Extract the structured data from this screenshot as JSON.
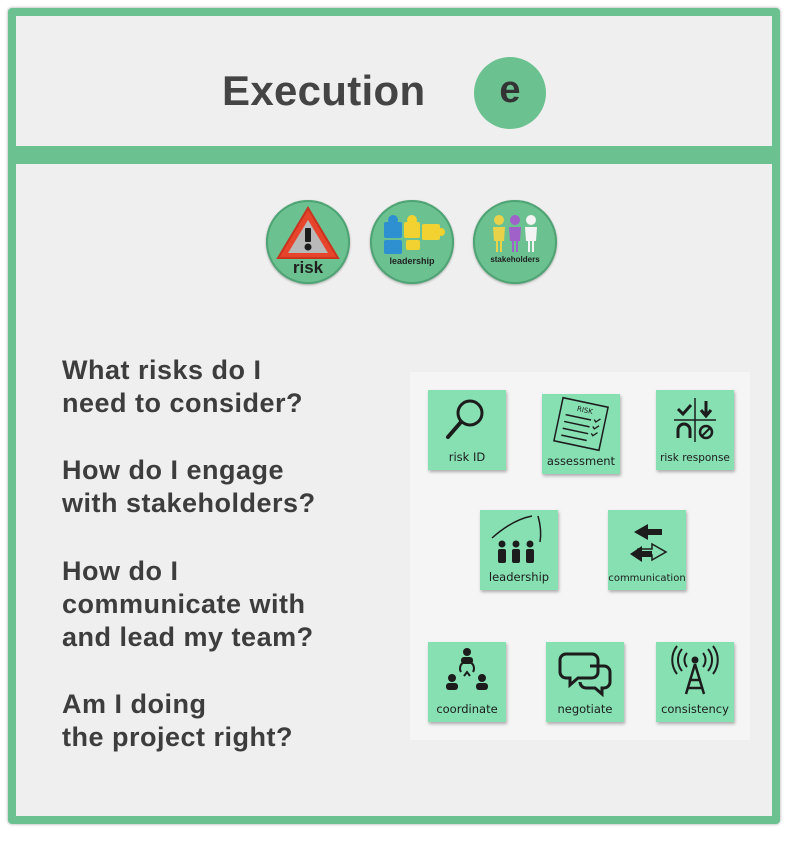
{
  "header": {
    "title": "Execution",
    "badge": "e"
  },
  "badges": [
    {
      "label": "risk",
      "icon": "warning-triangle-icon"
    },
    {
      "label": "leadership",
      "icon": "puzzle-pieces-icon"
    },
    {
      "label": "stakeholders",
      "icon": "people-icon"
    }
  ],
  "questions": [
    "What risks do I\nneed to consider?",
    "How do I engage\nwith stakeholders?",
    "How do I\ncommunicate with\nand lead my team?",
    "Am I doing\nthe project right?"
  ],
  "notes": [
    {
      "label": "risk ID",
      "icon": "magnifier-icon"
    },
    {
      "label": "assessment",
      "icon": "checklist-icon",
      "icon_text": "RISK"
    },
    {
      "label": "risk response",
      "icon": "response-grid-icon"
    },
    {
      "label": "leadership",
      "icon": "team-growth-icon"
    },
    {
      "label": "communication",
      "icon": "arrows-exchange-icon"
    },
    {
      "label": "coordinate",
      "icon": "coordinate-people-icon"
    },
    {
      "label": "negotiate",
      "icon": "speech-bubbles-icon"
    },
    {
      "label": "consistency",
      "icon": "broadcast-tower-icon"
    }
  ],
  "colors": {
    "frame_green": "#6bc190",
    "note_green": "#86e0b2",
    "panel_gray": "#efefef",
    "text_dark": "#444444"
  }
}
